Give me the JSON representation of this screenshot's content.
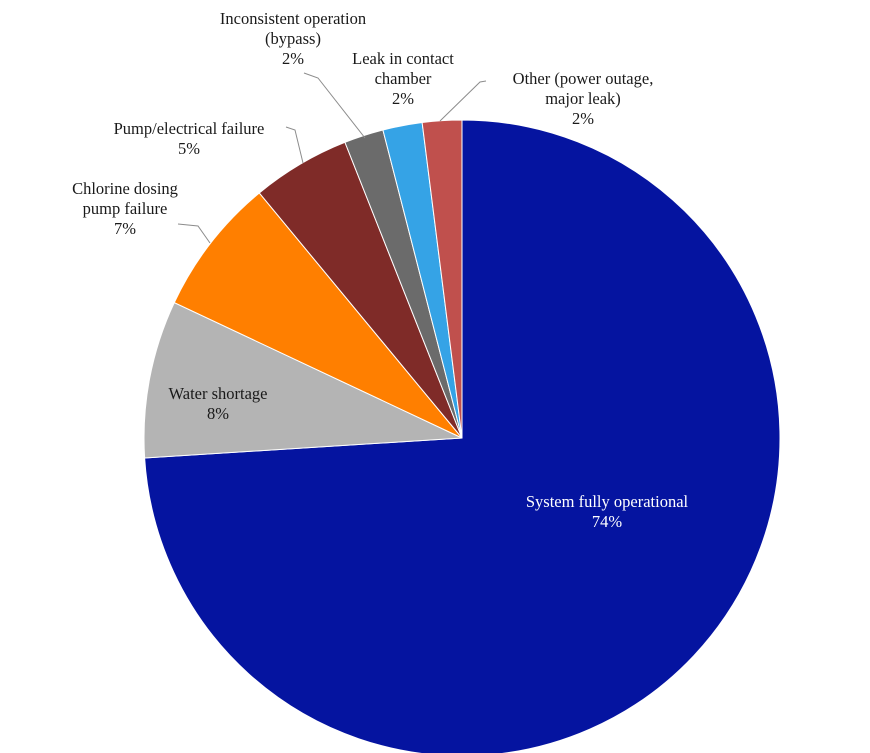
{
  "chart_data": {
    "type": "pie",
    "title": "",
    "start_angle_deg": 0,
    "direction": "clockwise",
    "slices": [
      {
        "name": "System fully operational",
        "display_lines": [
          "System fully operational"
        ],
        "value": 74,
        "value_label": "74%",
        "color": "#0514A0"
      },
      {
        "name": "Water shortage",
        "display_lines": [
          "Water shortage"
        ],
        "value": 8,
        "value_label": "8%",
        "color": "#B4B4B4"
      },
      {
        "name": "Chlorine dosing pump failure",
        "display_lines": [
          "Chlorine dosing",
          "pump failure"
        ],
        "value": 7,
        "value_label": "7%",
        "color": "#FF7F00"
      },
      {
        "name": "Pump/electrical failure",
        "display_lines": [
          "Pump/electrical failure"
        ],
        "value": 5,
        "value_label": "5%",
        "color": "#7F2B28"
      },
      {
        "name": "Inconsistent operation (bypass)",
        "display_lines": [
          "Inconsistent operation",
          "(bypass)"
        ],
        "value": 2,
        "value_label": "2%",
        "color": "#6B6B6B"
      },
      {
        "name": "Leak in contact chamber",
        "display_lines": [
          "Leak in contact",
          "chamber"
        ],
        "value": 2,
        "value_label": "2%",
        "color": "#35A3E6"
      },
      {
        "name": "Other (power outage, major leak)",
        "display_lines": [
          "Other (power outage,",
          "major leak)"
        ],
        "value": 2,
        "value_label": "2%",
        "color": "#C0504D"
      }
    ]
  }
}
